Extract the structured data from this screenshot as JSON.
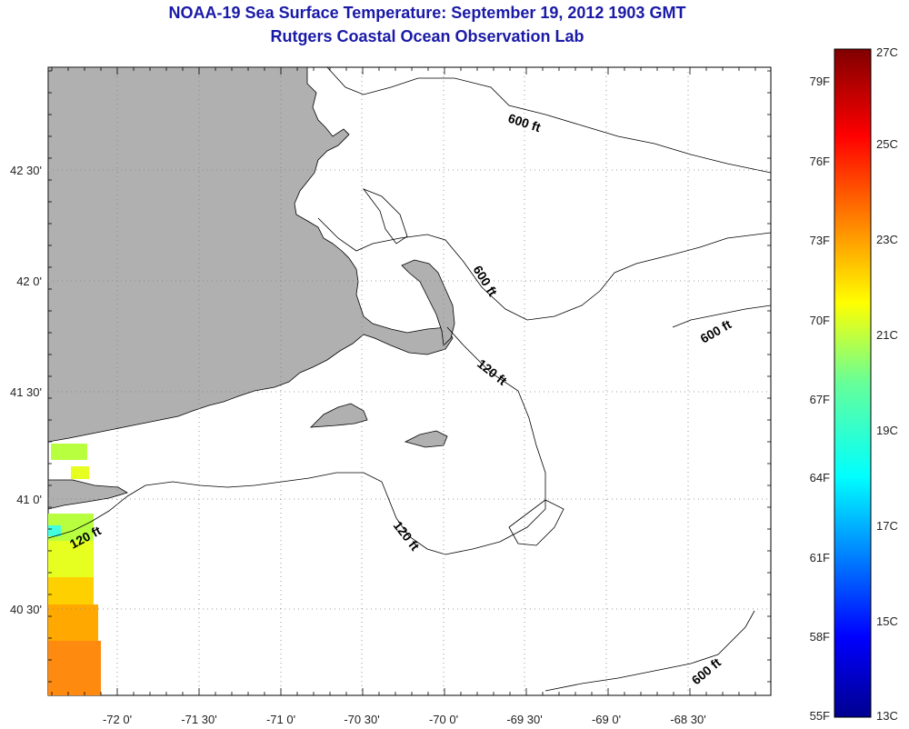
{
  "title": "NOAA-19 Sea Surface Temperature:  September 19, 2012 1903 GMT",
  "subtitle": "Rutgers Coastal Ocean Observation Lab",
  "axes": {
    "lon_ticks": [
      "-72 0'",
      "-71 30'",
      "-71 0'",
      "-70 30'",
      "-70 0'",
      "-69 30'",
      "-69 0'",
      "-68 30'"
    ],
    "lat_ticks": [
      "42 30'",
      "42 0'",
      "41 30'",
      "41 0'",
      "40 30'"
    ]
  },
  "contour_labels": [
    {
      "text": "600 ft"
    },
    {
      "text": "600 ft"
    },
    {
      "text": "600 ft"
    },
    {
      "text": "120 ft"
    },
    {
      "text": "120 ft"
    },
    {
      "text": "120 ft"
    },
    {
      "text": "600 ft"
    }
  ],
  "colorbar": {
    "fahrenheit": [
      "79F",
      "76F",
      "73F",
      "70F",
      "67F",
      "64F",
      "61F",
      "58F",
      "55F"
    ],
    "celsius": [
      "27C",
      "25C",
      "23C",
      "21C",
      "19C",
      "17C",
      "15C",
      "13C"
    ]
  },
  "colors": {
    "title": "#1a1aa8",
    "land": "#b0b0b0",
    "coast": "#000000",
    "grid": "#808080"
  }
}
